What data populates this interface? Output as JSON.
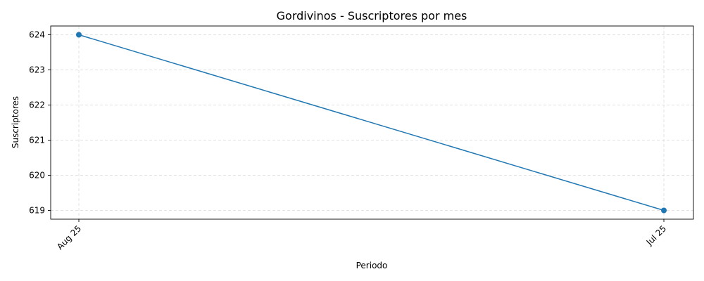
{
  "chart_data": {
    "type": "line",
    "title": "Gordivinos - Suscriptores por mes",
    "xlabel": "Periodo",
    "ylabel": "Suscriptores",
    "categories": [
      "Aug 25",
      "Jul 25"
    ],
    "series": [
      {
        "values": [
          624,
          619
        ],
        "color": "#1f77b4"
      }
    ],
    "yticks": [
      619,
      620,
      621,
      622,
      623,
      624
    ],
    "ylim": [
      618.75,
      624.25
    ],
    "grid": true,
    "marker": "circle"
  }
}
